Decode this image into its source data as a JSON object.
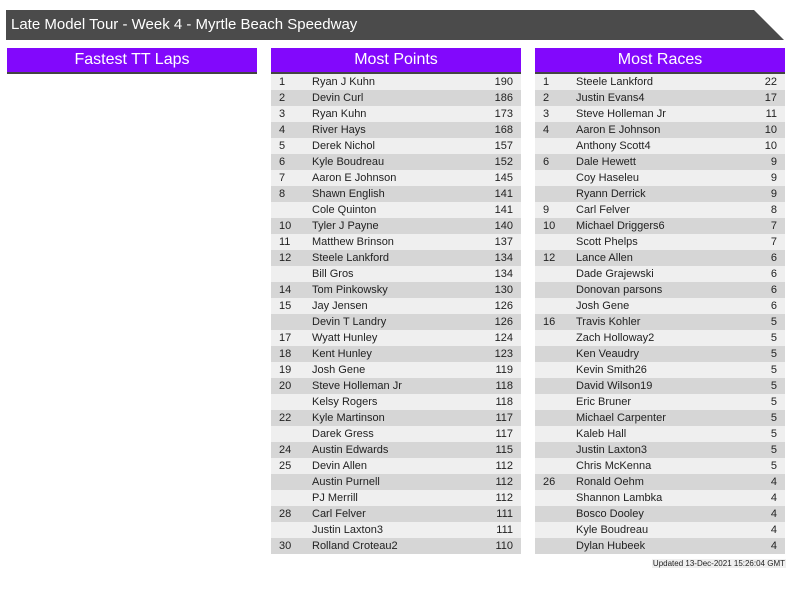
{
  "title": "Late Model Tour - Week 4 - Myrtle Beach Speedway",
  "panels": [
    {
      "header": "Fastest TT Laps",
      "rows": []
    },
    {
      "header": "Most Points",
      "rows": [
        [
          "1",
          "Ryan J Kuhn",
          "190"
        ],
        [
          "2",
          "Devin Curl",
          "186"
        ],
        [
          "3",
          "Ryan Kuhn",
          "173"
        ],
        [
          "4",
          "River Hays",
          "168"
        ],
        [
          "5",
          "Derek Nichol",
          "157"
        ],
        [
          "6",
          "Kyle Boudreau",
          "152"
        ],
        [
          "7",
          "Aaron E Johnson",
          "145"
        ],
        [
          "8",
          "Shawn English",
          "141"
        ],
        [
          "",
          "Cole Quinton",
          "141"
        ],
        [
          "10",
          "Tyler J Payne",
          "140"
        ],
        [
          "11",
          "Matthew Brinson",
          "137"
        ],
        [
          "12",
          "Steele Lankford",
          "134"
        ],
        [
          "",
          "Bill Gros",
          "134"
        ],
        [
          "14",
          "Tom Pinkowsky",
          "130"
        ],
        [
          "15",
          "Jay Jensen",
          "126"
        ],
        [
          "",
          "Devin T Landry",
          "126"
        ],
        [
          "17",
          "Wyatt Hunley",
          "124"
        ],
        [
          "18",
          "Kent Hunley",
          "123"
        ],
        [
          "19",
          "Josh Gene",
          "119"
        ],
        [
          "20",
          "Steve Holleman Jr",
          "118"
        ],
        [
          "",
          "Kelsy Rogers",
          "118"
        ],
        [
          "22",
          "Kyle Martinson",
          "117"
        ],
        [
          "",
          "Darek Gress",
          "117"
        ],
        [
          "24",
          "Austin Edwards",
          "115"
        ],
        [
          "25",
          "Devin Allen",
          "112"
        ],
        [
          "",
          "Austin Purnell",
          "112"
        ],
        [
          "",
          "PJ Merrill",
          "112"
        ],
        [
          "28",
          "Carl Felver",
          "111"
        ],
        [
          "",
          "Justin Laxton3",
          "111"
        ],
        [
          "30",
          "Rolland Croteau2",
          "110"
        ]
      ]
    },
    {
      "header": "Most Races",
      "rows": [
        [
          "1",
          "Steele Lankford",
          "22"
        ],
        [
          "2",
          "Justin Evans4",
          "17"
        ],
        [
          "3",
          "Steve Holleman Jr",
          "11"
        ],
        [
          "4",
          "Aaron E Johnson",
          "10"
        ],
        [
          "",
          "Anthony Scott4",
          "10"
        ],
        [
          "6",
          "Dale Hewett",
          "9"
        ],
        [
          "",
          "Coy Haseleu",
          "9"
        ],
        [
          "",
          "Ryann Derrick",
          "9"
        ],
        [
          "9",
          "Carl Felver",
          "8"
        ],
        [
          "10",
          "Michael Driggers6",
          "7"
        ],
        [
          "",
          "Scott Phelps",
          "7"
        ],
        [
          "12",
          "Lance Allen",
          "6"
        ],
        [
          "",
          "Dade Grajewski",
          "6"
        ],
        [
          "",
          "Donovan parsons",
          "6"
        ],
        [
          "",
          "Josh Gene",
          "6"
        ],
        [
          "16",
          "Travis Kohler",
          "5"
        ],
        [
          "",
          "Zach Holloway2",
          "5"
        ],
        [
          "",
          "Ken Veaudry",
          "5"
        ],
        [
          "",
          "Kevin Smith26",
          "5"
        ],
        [
          "",
          "David Wilson19",
          "5"
        ],
        [
          "",
          "Eric Bruner",
          "5"
        ],
        [
          "",
          "Michael Carpenter",
          "5"
        ],
        [
          "",
          "Kaleb Hall",
          "5"
        ],
        [
          "",
          "Justin Laxton3",
          "5"
        ],
        [
          "",
          "Chris McKenna",
          "5"
        ],
        [
          "26",
          "Ronald Oehm",
          "4"
        ],
        [
          "",
          "Shannon Lambka",
          "4"
        ],
        [
          "",
          "Bosco Dooley",
          "4"
        ],
        [
          "",
          "Kyle Boudreau",
          "4"
        ],
        [
          "",
          "Dylan Hubeek",
          "4"
        ]
      ]
    }
  ],
  "updated": "Updated 13-Dec-2021 15:26:04 GMT",
  "colors": {
    "title_bg": "#4b4b4b",
    "header_bg": "#8208fc"
  }
}
